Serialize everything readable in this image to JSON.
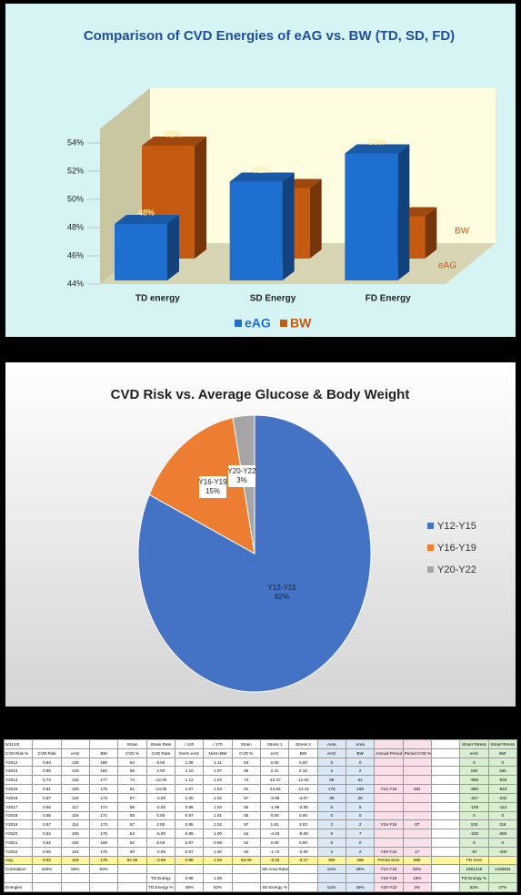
{
  "chart_data": [
    {
      "type": "bar3d",
      "title": "Comparison of CVD Energies of eAG vs. BW  (TD, SD, FD)",
      "categories": [
        "TD energy",
        "SD Energy",
        "FD Energy"
      ],
      "series": [
        {
          "name": "eAG",
          "color": "#1f6fd0",
          "values": [
            48,
            51,
            53
          ],
          "value_labels": [
            "48%",
            "51%",
            "53%"
          ]
        },
        {
          "name": "BW",
          "color": "#c55a11",
          "values": [
            52,
            49,
            47
          ],
          "value_labels": [
            "52%",
            "49%",
            "47%"
          ]
        }
      ],
      "ylim": [
        44,
        55
      ],
      "yticks": [
        {
          "value": 44,
          "label": "44%"
        },
        {
          "value": 46,
          "label": "46%"
        },
        {
          "value": 48,
          "label": "48%"
        },
        {
          "value": 50,
          "label": "50%"
        },
        {
          "value": 52,
          "label": "52%"
        },
        {
          "value": 54,
          "label": "54%"
        }
      ],
      "legend": "bottom"
    },
    {
      "type": "pie",
      "title": "CVD Risk vs. Average Glucose & Body Weight",
      "categories": [
        "Y12-Y15",
        "Y16-Y19",
        "Y20-Y22"
      ],
      "values": [
        82,
        15,
        3
      ],
      "value_labels": [
        "82%",
        "15%",
        "3%"
      ],
      "colors": [
        "#4472c4",
        "#ed7d31",
        "#a5a5a5"
      ],
      "legend": "right"
    }
  ],
  "table": {
    "rows": [
      [
        "5/31/22",
        null,
        null,
        null,
        "Strain",
        "Strain Rate",
        "/ 120",
        "/ 170",
        "Strain",
        "Stress 1",
        "Stress 2",
        "Area",
        "Area",
        null,
        null,
        null,
        "Strain*Stress",
        "Strain*Stress"
      ],
      [
        "CVD Risk %",
        "CVD Risk",
        "eAG",
        "BW",
        "CVD %",
        "CVD Rate",
        "Norm.eAG",
        "Norm.BW",
        "CVD %",
        "eAG",
        "BW",
        "eAG",
        "BW",
        "Annual Period",
        "Period CVD %",
        null,
        "eAG",
        "BW"
      ],
      [
        "Y2012",
        "0.84",
        "126",
        "188",
        "84",
        "0.00",
        "1.06",
        "1.11",
        "84",
        "0.00",
        "0.00",
        "0",
        "0",
        null,
        null,
        null,
        "0",
        "0"
      ],
      [
        "Y2013",
        "0.86",
        "133",
        "183",
        "86",
        "2.00",
        "1.10",
        "1.07",
        "86",
        "2.21",
        "2.15",
        "2",
        "2",
        null,
        null,
        null,
        "190",
        "185"
      ],
      [
        "Y2014",
        "0.74",
        "126",
        "177",
        "74",
        "-12.00",
        "1.12",
        "1.04",
        "74",
        "-13.47",
        "-12.51",
        "68",
        "62",
        null,
        null,
        null,
        "-996",
        "-926"
      ],
      [
        "Y2015",
        "0.81",
        "129",
        "175",
        "81",
        "-13.00",
        "1.07",
        "1.03",
        "81",
        "-13.84",
        "-13.41",
        "178",
        "169",
        "Y12-Y15",
        "481",
        null,
        "-850",
        "-818"
      ],
      [
        "Y2016",
        "0.57",
        "119",
        "173",
        "57",
        "-4.00",
        "1.00",
        "1.02",
        "57",
        "-3.98",
        "-4.07",
        "36",
        "35",
        null,
        null,
        null,
        "-227",
        "-232"
      ],
      [
        "Y2017",
        "0.55",
        "117",
        "174",
        "55",
        "-2.00",
        "0.98",
        "1.03",
        "55",
        "-1.96",
        "-2.05",
        "6",
        "6",
        null,
        null,
        null,
        "-108",
        "-113"
      ],
      [
        "Y2018",
        "0.55",
        "116",
        "171",
        "55",
        "0.00",
        "0.97",
        "1.01",
        "55",
        "0.00",
        "0.00",
        "0",
        "0",
        null,
        null,
        null,
        "0",
        "0"
      ],
      [
        "Y2019",
        "0.57",
        "114",
        "173",
        "57",
        "2.00",
        "0.95",
        "1.02",
        "57",
        "1.81",
        "2.03",
        "2",
        "2",
        "Y16-Y19",
        "87",
        null,
        "103",
        "116"
      ],
      [
        "Y2020",
        "0.52",
        "106",
        "170",
        "52",
        "-5.00",
        "0.89",
        "1.00",
        "52",
        "-4.43",
        "-5.00",
        "6",
        "7",
        null,
        null,
        null,
        "-230",
        "-260"
      ],
      [
        "Y2021",
        "0.52",
        "105",
        "169",
        "52",
        "0.00",
        "0.87",
        "0.99",
        "52",
        "0.00",
        "0.00",
        "0",
        "0",
        null,
        null,
        null,
        "0",
        "0"
      ],
      [
        "Y2022",
        "0.50",
        "104",
        "170",
        "50",
        "-2.00",
        "0.87",
        "1.00",
        "50",
        "-1.74",
        "-2.00",
        "2",
        "2",
        "Y20-Y22",
        "17",
        null,
        "-87",
        "-100"
      ],
      [
        "Avg",
        "0.62",
        "118",
        "176",
        "62.36",
        "-3.68",
        "0.98",
        "1.03",
        "62.09",
        "-3.22",
        "-3.17",
        "300",
        "285",
        "Period Sum",
        "585",
        null,
        "FD Area",
        null
      ],
      [
        "Correlation",
        "100%",
        "83%",
        "83%",
        null,
        null,
        null,
        null,
        null,
        "SD Area Ratio",
        null,
        "51%",
        "49%",
        "Y12-Y15",
        "82%",
        null,
        "1591215",
        "1428931"
      ],
      [
        null,
        null,
        null,
        null,
        null,
        "TD Energy",
        "0.98",
        "1.06",
        null,
        null,
        null,
        null,
        null,
        "Y16-Y19",
        "15%",
        null,
        "FD Energy %",
        null
      ],
      [
        "Energies",
        null,
        null,
        null,
        null,
        "TD Energy %",
        "48%",
        "52%",
        null,
        "SD Energy %",
        null,
        "51%",
        "49%",
        "Y20-Y22",
        "3%",
        null,
        "53%",
        "47%"
      ]
    ]
  }
}
